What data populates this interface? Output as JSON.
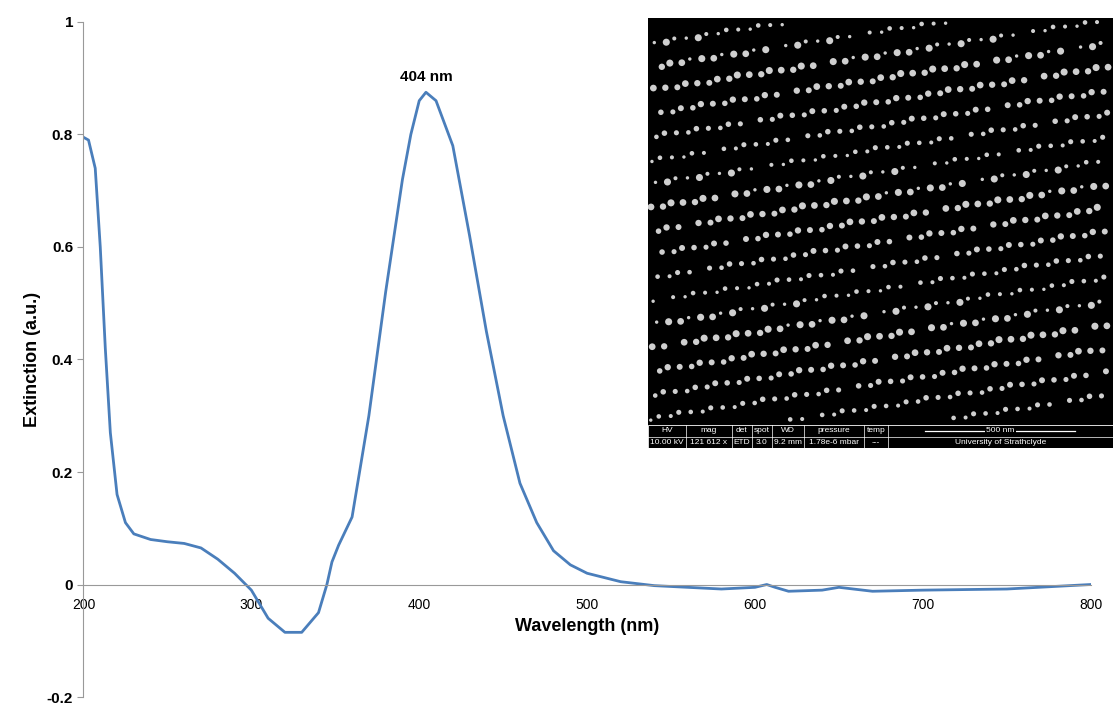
{
  "chart_data": {
    "type": "line",
    "xlabel": "Wavelength (nm)",
    "ylabel": "Extinction (a.u.)",
    "color": "#4a7ebb",
    "grid": false,
    "x": [
      200,
      203,
      207,
      210,
      213,
      216,
      220,
      225,
      230,
      240,
      250,
      260,
      270,
      280,
      290,
      300,
      310,
      320,
      330,
      340,
      345,
      348,
      352,
      360,
      370,
      380,
      390,
      395,
      400,
      404,
      410,
      420,
      430,
      440,
      450,
      460,
      470,
      480,
      490,
      500,
      520,
      540,
      560,
      580,
      600,
      607,
      612,
      620,
      640,
      650,
      670,
      700,
      750,
      800
    ],
    "values": [
      0.795,
      0.79,
      0.74,
      0.6,
      0.42,
      0.27,
      0.16,
      0.11,
      0.09,
      0.08,
      0.076,
      0.073,
      0.065,
      0.045,
      0.02,
      -0.01,
      -0.06,
      -0.085,
      -0.085,
      -0.05,
      0.0,
      0.04,
      0.07,
      0.12,
      0.3,
      0.52,
      0.72,
      0.8,
      0.86,
      0.875,
      0.86,
      0.78,
      0.62,
      0.45,
      0.3,
      0.18,
      0.11,
      0.06,
      0.035,
      0.02,
      0.005,
      -0.002,
      -0.005,
      -0.008,
      -0.005,
      0.0,
      -0.005,
      -0.012,
      -0.01,
      -0.005,
      -0.012,
      -0.01,
      -0.008,
      0.0
    ],
    "xlim": [
      200,
      800
    ],
    "xticks": [
      200,
      300,
      400,
      500,
      600,
      700,
      800
    ],
    "ylim": [
      -0.2,
      1
    ],
    "yticks": [
      -0.2,
      0,
      0.2,
      0.4,
      0.6,
      0.8,
      1
    ],
    "annotation": {
      "text": "404 nm",
      "x": 404,
      "y": 0.875
    },
    "inset": {
      "scale_bar": "500 nm",
      "info_headers": [
        "HV",
        "mag",
        "det",
        "spot",
        "WD",
        "pressure",
        "temp"
      ],
      "info_values": [
        "10.00 kV",
        "121 612 x",
        "ETD",
        "3.0",
        "9.2 mm",
        "1.78e-6 mbar",
        "---",
        "University of Strathclyde"
      ]
    }
  }
}
